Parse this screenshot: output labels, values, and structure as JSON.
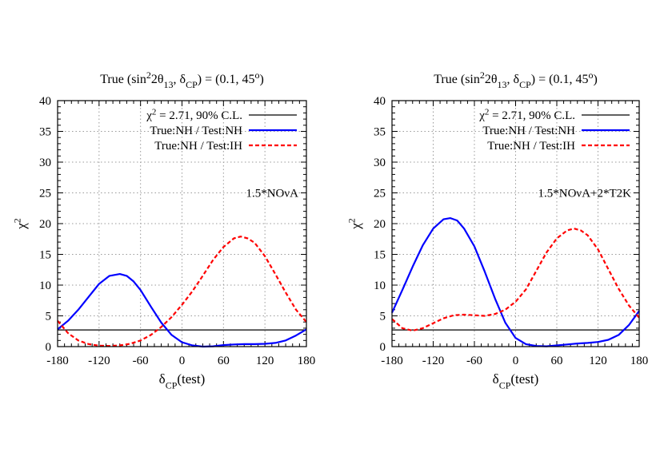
{
  "chart_data": [
    {
      "type": "line",
      "title": "True (sin²2θ₁₃, δ_CP) = (0.1, 45°)",
      "xlabel": "δ_CP(test)",
      "ylabel": "χ²",
      "xlim": [
        -180,
        180
      ],
      "ylim": [
        0,
        40
      ],
      "xticks": [
        -180,
        -120,
        -60,
        0,
        60,
        120,
        180
      ],
      "yticks": [
        0,
        5,
        10,
        15,
        20,
        25,
        30,
        35,
        40
      ],
      "grid": true,
      "legend_position": "top-right",
      "annotation": "1.5*NOνA",
      "series": [
        {
          "name": "χ² = 2.71, 90% C.L.",
          "color": "#000000",
          "style": "solid",
          "x": [
            -180,
            180
          ],
          "y": [
            2.71,
            2.71
          ]
        },
        {
          "name": "True:NH / Test:NH",
          "color": "#0000ff",
          "style": "solid",
          "x": [
            -180,
            -165,
            -150,
            -135,
            -120,
            -105,
            -90,
            -80,
            -70,
            -60,
            -45,
            -30,
            -15,
            0,
            15,
            30,
            45,
            60,
            75,
            90,
            105,
            120,
            135,
            150,
            165,
            180
          ],
          "y": [
            2.8,
            4.2,
            6.0,
            8.1,
            10.2,
            11.5,
            11.8,
            11.5,
            10.6,
            9.2,
            6.5,
            3.9,
            1.9,
            0.7,
            0.2,
            0.0,
            0.05,
            0.25,
            0.35,
            0.4,
            0.4,
            0.45,
            0.6,
            1.0,
            1.8,
            2.8
          ]
        },
        {
          "name": "True:NH / Test:IH",
          "color": "#ff0000",
          "style": "dashed",
          "x": [
            -180,
            -165,
            -150,
            -135,
            -120,
            -105,
            -90,
            -75,
            -60,
            -45,
            -30,
            -15,
            0,
            15,
            30,
            45,
            60,
            75,
            85,
            95,
            105,
            120,
            135,
            150,
            165,
            180
          ],
          "y": [
            4.2,
            2.2,
            1.0,
            0.4,
            0.15,
            0.1,
            0.2,
            0.45,
            1.0,
            1.9,
            3.2,
            4.8,
            6.8,
            9.0,
            11.5,
            14.1,
            16.2,
            17.6,
            17.9,
            17.6,
            16.9,
            14.7,
            11.8,
            8.8,
            6.0,
            4.0
          ]
        }
      ]
    },
    {
      "type": "line",
      "title": "True (sin²2θ₁₃, δ_CP) = (0.1, 45°)",
      "xlabel": "δ_CP(test)",
      "ylabel": "χ²",
      "xlim": [
        -180,
        180
      ],
      "ylim": [
        0,
        40
      ],
      "xticks": [
        -180,
        -120,
        -60,
        0,
        60,
        120,
        180
      ],
      "yticks": [
        0,
        5,
        10,
        15,
        20,
        25,
        30,
        35,
        40
      ],
      "grid": true,
      "legend_position": "top-right",
      "annotation": "1.5*NOνA+2*T2K",
      "series": [
        {
          "name": "χ² = 2.71, 90% C.L.",
          "color": "#000000",
          "style": "solid",
          "x": [
            -180,
            180
          ],
          "y": [
            2.71,
            2.71
          ]
        },
        {
          "name": "True:NH / Test:NH",
          "color": "#0000ff",
          "style": "solid",
          "x": [
            -180,
            -165,
            -150,
            -135,
            -120,
            -105,
            -95,
            -85,
            -75,
            -60,
            -45,
            -30,
            -15,
            0,
            15,
            30,
            45,
            60,
            75,
            90,
            105,
            120,
            135,
            150,
            165,
            180
          ],
          "y": [
            5.5,
            9.2,
            13.0,
            16.5,
            19.2,
            20.7,
            20.9,
            20.5,
            19.2,
            16.3,
            12.2,
            7.8,
            3.9,
            1.4,
            0.4,
            0.1,
            0.05,
            0.2,
            0.35,
            0.5,
            0.6,
            0.75,
            1.1,
            1.9,
            3.5,
            5.8
          ]
        },
        {
          "name": "True:NH / Test:IH",
          "color": "#ff0000",
          "style": "dashed",
          "x": [
            -180,
            -165,
            -150,
            -135,
            -120,
            -105,
            -90,
            -75,
            -60,
            -45,
            -30,
            -15,
            0,
            15,
            30,
            45,
            60,
            75,
            85,
            95,
            105,
            120,
            135,
            150,
            165,
            180
          ],
          "y": [
            4.5,
            3.0,
            2.6,
            3.0,
            3.8,
            4.6,
            5.1,
            5.2,
            5.1,
            5.0,
            5.3,
            6.0,
            7.3,
            9.3,
            12.3,
            15.3,
            17.6,
            18.9,
            19.2,
            18.9,
            18.1,
            15.8,
            12.6,
            9.4,
            6.7,
            4.7
          ]
        }
      ]
    }
  ]
}
